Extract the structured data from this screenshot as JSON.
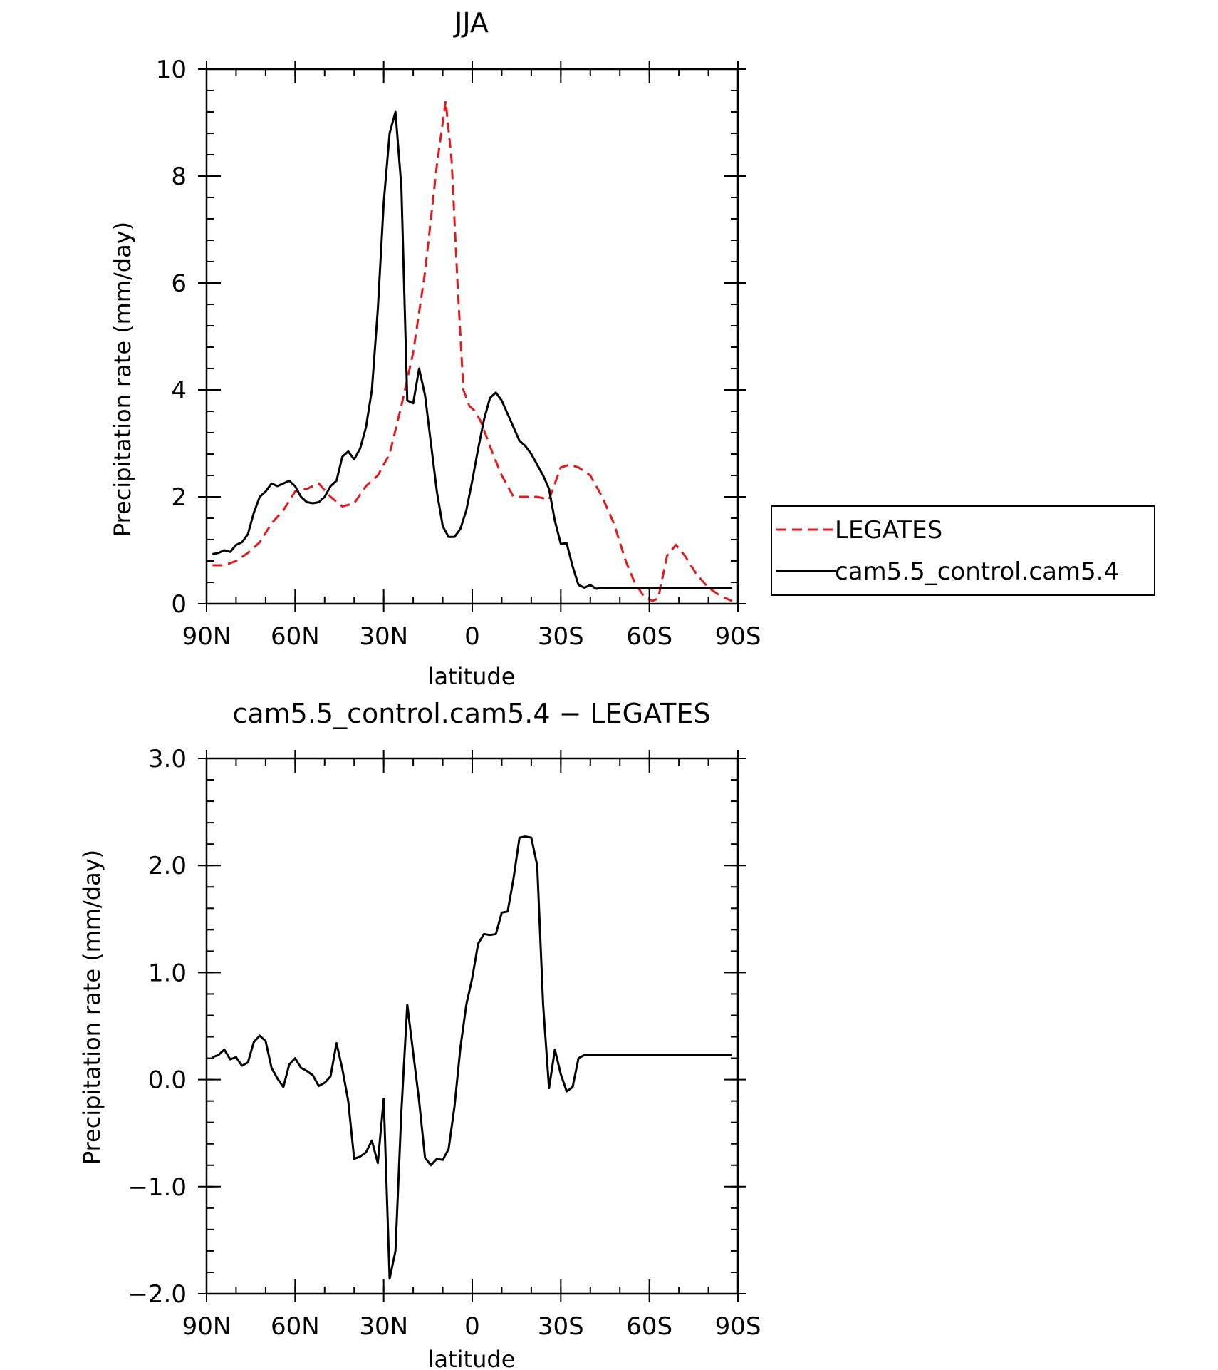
{
  "chart_data": [
    {
      "type": "line",
      "title": "JJA",
      "xlabel": "latitude",
      "ylabel": "Precipitation rate (mm/day)",
      "x_tick_labels": [
        "90N",
        "60N",
        "30N",
        "0",
        "30S",
        "60S",
        "90S"
      ],
      "x_ticks": [
        90,
        60,
        30,
        0,
        -30,
        -60,
        -90
      ],
      "xlim": [
        90,
        -90
      ],
      "ylim": [
        0,
        10
      ],
      "y_ticks": [
        0,
        2,
        4,
        6,
        8,
        10
      ],
      "y_tick_labels": [
        "0",
        "2",
        "4",
        "6",
        "8",
        "10"
      ],
      "legend": [
        "LEGATES",
        "cam5.5_control.cam5.4"
      ],
      "series": [
        {
          "name": "LEGATES",
          "color": "#e31a1c",
          "dash": "dashed",
          "x": [
            88,
            84,
            80,
            76,
            72,
            68,
            64,
            60,
            56,
            52,
            48,
            44,
            40,
            36,
            32,
            28,
            24,
            20,
            16,
            12,
            9,
            7,
            5,
            3,
            1,
            -1,
            -3,
            -5,
            -7,
            -10,
            -14,
            -18,
            -22,
            -26,
            -30,
            -33,
            -36,
            -40,
            -44,
            -48,
            -52,
            -55,
            -58,
            -61,
            -63,
            -66,
            -69,
            -72,
            -76,
            -80,
            -84,
            -88
          ],
          "values": [
            0.72,
            0.72,
            0.8,
            0.95,
            1.15,
            1.5,
            1.75,
            2.1,
            2.15,
            2.25,
            2.0,
            1.82,
            1.88,
            2.2,
            2.4,
            2.8,
            3.7,
            4.7,
            6.2,
            8.2,
            9.4,
            8.3,
            6.0,
            4.0,
            3.7,
            3.6,
            3.4,
            3.1,
            2.8,
            2.4,
            2.0,
            2.0,
            2.0,
            1.95,
            2.55,
            2.6,
            2.55,
            2.4,
            2.0,
            1.5,
            0.8,
            0.4,
            0.15,
            0.05,
            0.1,
            0.9,
            1.1,
            0.9,
            0.55,
            0.3,
            0.15,
            0.05
          ]
        },
        {
          "name": "cam5.5_control.cam5.4",
          "color": "#000000",
          "dash": "solid",
          "x": [
            88,
            86,
            84,
            82,
            80,
            78,
            76,
            74,
            72,
            70,
            68,
            66,
            64,
            62,
            60,
            58,
            56,
            54,
            52,
            50,
            48,
            46,
            44,
            42,
            40,
            38,
            36,
            34,
            32,
            30,
            28,
            26,
            24,
            22,
            20,
            18,
            16,
            14,
            12,
            10,
            8,
            6,
            4,
            2,
            0,
            -2,
            -4,
            -6,
            -8,
            -10,
            -12,
            -14,
            -16,
            -18,
            -20,
            -22,
            -24,
            -26,
            -28,
            -30,
            -32,
            -34,
            -36,
            -38,
            -40,
            -42,
            -44,
            -46,
            -48,
            -50,
            -52,
            -54,
            -56,
            -58,
            -60,
            -62,
            -64,
            -66,
            -68,
            -70,
            -72,
            -74,
            -76,
            -78,
            -80,
            -82,
            -84,
            -86,
            -88
          ],
          "values": [
            0.93,
            0.95,
            1.0,
            0.97,
            1.1,
            1.15,
            1.3,
            1.7,
            2.0,
            2.1,
            2.25,
            2.2,
            2.25,
            2.3,
            2.2,
            2.0,
            1.9,
            1.88,
            1.9,
            2.0,
            2.2,
            2.3,
            2.75,
            2.85,
            2.7,
            2.9,
            3.3,
            4.0,
            5.5,
            7.5,
            8.8,
            9.2,
            7.8,
            3.8,
            3.75,
            4.4,
            3.9,
            3.0,
            2.1,
            1.45,
            1.25,
            1.25,
            1.4,
            1.75,
            2.3,
            2.9,
            3.45,
            3.85,
            3.95,
            3.8,
            3.55,
            3.3,
            3.05,
            2.95,
            2.8,
            2.6,
            2.4,
            2.15,
            1.55,
            1.12,
            1.13,
            0.7,
            0.35,
            0.3,
            0.35,
            0.28,
            0.3,
            0.3,
            0.3,
            0.3,
            0.3,
            0.3,
            0.3,
            0.3,
            0.3,
            0.3,
            0.3,
            0.3,
            0.3,
            0.3,
            0.3,
            0.3,
            0.3,
            0.3,
            0.3,
            0.3,
            0.3,
            0.3,
            0.3
          ]
        }
      ]
    },
    {
      "type": "line",
      "title": "cam5.5_control.cam5.4 − LEGATES",
      "xlabel": "latitude",
      "ylabel": "Precipitation rate (mm/day)",
      "x_tick_labels": [
        "90N",
        "60N",
        "30N",
        "0",
        "30S",
        "60S",
        "90S"
      ],
      "x_ticks": [
        90,
        60,
        30,
        0,
        -30,
        -60,
        -90
      ],
      "xlim": [
        90,
        -90
      ],
      "ylim": [
        -2.0,
        3.0
      ],
      "y_ticks": [
        -2.0,
        -1.0,
        0.0,
        1.0,
        2.0,
        3.0
      ],
      "y_tick_labels": [
        "−2.0",
        "−1.0",
        "0.0",
        "1.0",
        "2.0",
        "3.0"
      ],
      "series": [
        {
          "name": "cam5.5_control.cam5.4 − LEGATES",
          "color": "#000000",
          "dash": "solid",
          "x": [
            88,
            86,
            84,
            82,
            80,
            78,
            76,
            74,
            72,
            70,
            68,
            66,
            64,
            62,
            60,
            58,
            56,
            54,
            52,
            50,
            48,
            46,
            44,
            42,
            40,
            38,
            36,
            34,
            32,
            30,
            28,
            26,
            24,
            22,
            20,
            18,
            16,
            14,
            12,
            10,
            8,
            6,
            4,
            2,
            0,
            -2,
            -4,
            -6,
            -8,
            -10,
            -12,
            -14,
            -16,
            -18,
            -20,
            -22,
            -24,
            -26,
            -28,
            -30,
            -32,
            -34,
            -36,
            -38,
            -40,
            -42,
            -44,
            -46,
            -48,
            -50,
            -52,
            -54,
            -56,
            -58,
            -60,
            -62,
            -64,
            -66,
            -68,
            -70,
            -72,
            -74,
            -76,
            -78,
            -80,
            -82,
            -84,
            -86,
            -88
          ],
          "values": [
            0.21,
            0.23,
            0.28,
            0.19,
            0.21,
            0.13,
            0.16,
            0.35,
            0.41,
            0.36,
            0.11,
            0.01,
            -0.07,
            0.14,
            0.2,
            0.11,
            0.08,
            0.04,
            -0.06,
            -0.03,
            0.03,
            0.34,
            0.1,
            -0.2,
            -0.74,
            -0.72,
            -0.68,
            -0.57,
            -0.78,
            -0.18,
            -1.86,
            -1.6,
            -0.3,
            0.7,
            0.25,
            -0.2,
            -0.73,
            -0.8,
            -0.74,
            -0.75,
            -0.65,
            -0.25,
            0.3,
            0.7,
            0.95,
            1.27,
            1.36,
            1.35,
            1.36,
            1.56,
            1.57,
            1.88,
            2.26,
            2.27,
            2.26,
            2.0,
            0.7,
            -0.08,
            0.28,
            0.05,
            -0.11,
            -0.07,
            0.2,
            0.23,
            0.23,
            0.23,
            0.23,
            0.23,
            0.23,
            0.23,
            0.23,
            0.23,
            0.23,
            0.23,
            0.23,
            0.23,
            0.23,
            0.23,
            0.23,
            0.23,
            0.23,
            0.23,
            0.23,
            0.23,
            0.23,
            0.23,
            0.23,
            0.23,
            0.23
          ]
        }
      ]
    }
  ]
}
